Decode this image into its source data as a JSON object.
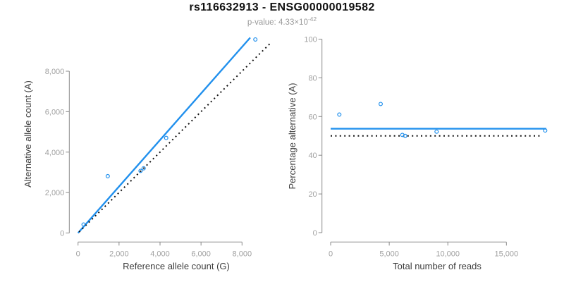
{
  "header": {
    "title": "rs116632913 - ENSG00000019582",
    "pvalue_base": "p-value: 4.33×10",
    "pvalue_exponent": "-42"
  },
  "colors": {
    "accent_blue": "#2190ed",
    "axis_line": "#8a8a8a",
    "tick_label": "#a1a1a1",
    "axis_title": "#3d3d3d",
    "dotted_line": "#111111",
    "title": "#111111",
    "subtitle": "#9a9a9a",
    "background": "#ffffff"
  },
  "chart_data": [
    {
      "type": "scatter",
      "name": "allele-count-scatter",
      "xlabel": "Reference allele count (G)",
      "ylabel": "Alternative allele count (A)",
      "xlim": [
        0,
        9600
      ],
      "ylim": [
        0,
        9900
      ],
      "grid": false,
      "x_ticks": [
        {
          "v": 0,
          "label": "0"
        },
        {
          "v": 2000,
          "label": "2,000"
        },
        {
          "v": 4000,
          "label": "4,000"
        },
        {
          "v": 6000,
          "label": "6,000"
        },
        {
          "v": 8000,
          "label": "8,000"
        }
      ],
      "y_ticks": [
        {
          "v": 0,
          "label": "0"
        },
        {
          "v": 2000,
          "label": "2,000"
        },
        {
          "v": 4000,
          "label": "4,000"
        },
        {
          "v": 6000,
          "label": "6,000"
        },
        {
          "v": 8000,
          "label": "8,000"
        }
      ],
      "points": [
        [
          270,
          420
        ],
        [
          1450,
          2810
        ],
        [
          3050,
          3070
        ],
        [
          3200,
          3200
        ],
        [
          4300,
          4700
        ],
        [
          8650,
          9570
        ]
      ],
      "lines": [
        {
          "name": "fit-line",
          "x1": 0,
          "y1": 0,
          "x2": 8400,
          "y2": 9660,
          "color": "accent",
          "dash": "solid"
        },
        {
          "name": "identity-line",
          "x1": 50,
          "y1": 50,
          "x2": 9450,
          "y2": 9450,
          "color": "black",
          "dash": "dotted"
        }
      ]
    },
    {
      "type": "scatter",
      "name": "percentage-scatter",
      "xlabel": "Total number of reads",
      "ylabel": "Percentage alternative (A)",
      "xlim": [
        0,
        18900
      ],
      "ylim": [
        0,
        100
      ],
      "grid": false,
      "x_ticks": [
        {
          "v": 0,
          "label": "0"
        },
        {
          "v": 5000,
          "label": "5,000"
        },
        {
          "v": 10000,
          "label": "10,000"
        },
        {
          "v": 15000,
          "label": "15,000"
        }
      ],
      "y_ticks": [
        {
          "v": 0,
          "label": "0"
        },
        {
          "v": 20,
          "label": "20"
        },
        {
          "v": 40,
          "label": "40"
        },
        {
          "v": 60,
          "label": "60"
        },
        {
          "v": 80,
          "label": "80"
        },
        {
          "v": 100,
          "label": "100"
        }
      ],
      "points": [
        [
          740,
          61
        ],
        [
          4270,
          66.5
        ],
        [
          6120,
          50.5
        ],
        [
          6360,
          50
        ],
        [
          9040,
          52.2
        ],
        [
          18310,
          52.8
        ]
      ],
      "lines": [
        {
          "name": "mean-percentage-line",
          "x1": 0,
          "y1": 53.7,
          "x2": 18400,
          "y2": 53.7,
          "color": "accent",
          "dash": "solid"
        },
        {
          "name": "expected-50-line",
          "x1": 0,
          "y1": 50,
          "x2": 18000,
          "y2": 50,
          "color": "black",
          "dash": "dotted"
        }
      ]
    }
  ]
}
